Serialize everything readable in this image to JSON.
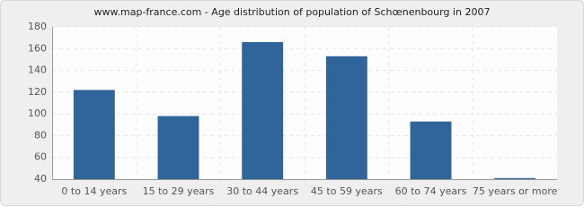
{
  "chart_data": {
    "type": "bar",
    "title": "www.map-france.com - Age distribution of population of Schœnenbourg in 2007",
    "categories": [
      "0 to 14 years",
      "15 to 29 years",
      "30 to 44 years",
      "45 to 59 years",
      "60 to 74 years",
      "75 years or more"
    ],
    "values": [
      122,
      98,
      166,
      153,
      93,
      41
    ],
    "color": "#30659a",
    "ylim": [
      40,
      180
    ],
    "yticks": [
      40,
      60,
      80,
      100,
      120,
      140,
      160,
      180
    ],
    "grid": true
  }
}
